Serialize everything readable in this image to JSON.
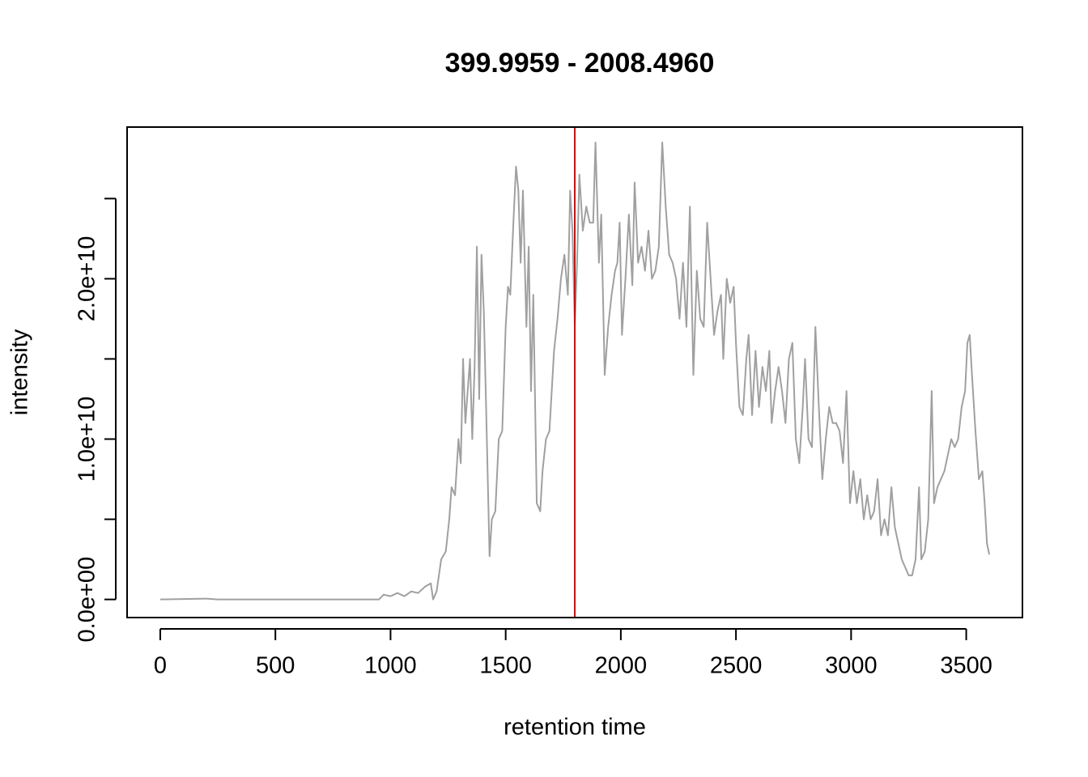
{
  "chart_data": {
    "type": "line",
    "title": "399.9959 - 2008.4960",
    "xlabel": "retention time",
    "ylabel": "intensity",
    "xlim": [
      -144,
      3744
    ],
    "ylim": [
      -1130000000.0,
      29460000000.0
    ],
    "xticks": [
      0,
      500,
      1000,
      1500,
      2000,
      2500,
      3000,
      3500
    ],
    "yticks": [
      {
        "value": 0,
        "label": "0.0e+00"
      },
      {
        "value": 5000000000.0,
        "label": null
      },
      {
        "value": 10000000000.0,
        "label": "1.0e+10"
      },
      {
        "value": 15000000000.0,
        "label": null
      },
      {
        "value": 20000000000.0,
        "label": "2.0e+10"
      },
      {
        "value": 25000000000.0,
        "label": null
      }
    ],
    "vline": {
      "x": 1800,
      "color": "#dd0000"
    },
    "series": [
      {
        "color": "#a0a0a0",
        "x": [
          0,
          200,
          250,
          500,
          950,
          970,
          1000,
          1030,
          1060,
          1090,
          1120,
          1150,
          1175,
          1185,
          1200,
          1220,
          1240,
          1255,
          1265,
          1280,
          1295,
          1305,
          1315,
          1325,
          1335,
          1345,
          1355,
          1365,
          1375,
          1385,
          1395,
          1405,
          1415,
          1430,
          1440,
          1455,
          1470,
          1485,
          1500,
          1510,
          1520,
          1535,
          1545,
          1555,
          1565,
          1575,
          1590,
          1600,
          1610,
          1620,
          1635,
          1650,
          1660,
          1675,
          1690,
          1710,
          1725,
          1740,
          1755,
          1770,
          1780,
          1790,
          1800,
          1810,
          1820,
          1835,
          1850,
          1865,
          1880,
          1890,
          1905,
          1915,
          1930,
          1945,
          1960,
          1975,
          1985,
          1995,
          2005,
          2020,
          2035,
          2050,
          2060,
          2075,
          2090,
          2105,
          2120,
          2135,
          2150,
          2165,
          2180,
          2195,
          2210,
          2225,
          2240,
          2255,
          2270,
          2285,
          2300,
          2315,
          2330,
          2345,
          2360,
          2375,
          2390,
          2405,
          2420,
          2435,
          2445,
          2460,
          2475,
          2490,
          2500,
          2515,
          2530,
          2545,
          2555,
          2570,
          2585,
          2600,
          2615,
          2630,
          2645,
          2655,
          2670,
          2685,
          2700,
          2715,
          2730,
          2745,
          2760,
          2775,
          2790,
          2800,
          2815,
          2830,
          2845,
          2860,
          2875,
          2890,
          2905,
          2920,
          2935,
          2950,
          2965,
          2980,
          2995,
          3010,
          3025,
          3040,
          3055,
          3070,
          3085,
          3100,
          3115,
          3130,
          3145,
          3160,
          3175,
          3190,
          3205,
          3220,
          3235,
          3250,
          3265,
          3280,
          3295,
          3305,
          3320,
          3335,
          3350,
          3360,
          3375,
          3390,
          3405,
          3420,
          3435,
          3450,
          3465,
          3480,
          3495,
          3505,
          3515,
          3525,
          3540,
          3555,
          3570,
          3580,
          3590,
          3600
        ],
        "values": [
          0,
          50000000.0,
          0,
          0,
          0,
          300000000.0,
          200000000.0,
          400000000.0,
          200000000.0,
          500000000.0,
          400000000.0,
          800000000.0,
          1000000000.0,
          0,
          500000000.0,
          2500000000.0,
          3000000000.0,
          5000000000.0,
          7000000000.0,
          6500000000.0,
          10000000000.0,
          8500000000.0,
          15000000000.0,
          11000000000.0,
          13000000000.0,
          15000000000.0,
          10000000000.0,
          14500000000.0,
          22000000000.0,
          12500000000.0,
          21500000000.0,
          18000000000.0,
          12000000000.0,
          2700000000.0,
          5000000000.0,
          5500000000.0,
          10000000000.0,
          10500000000.0,
          17000000000.0,
          19500000000.0,
          19000000000.0,
          24000000000.0,
          27000000000.0,
          25500000000.0,
          21000000000.0,
          25500000000.0,
          17000000000.0,
          22000000000.0,
          13000000000.0,
          19000000000.0,
          6000000000.0,
          5500000000.0,
          8000000000.0,
          10000000000.0,
          10500000000.0,
          15500000000.0,
          17500000000.0,
          20000000000.0,
          21500000000.0,
          19000000000.0,
          25500000000.0,
          23000000000.0,
          17000000000.0,
          21000000000.0,
          26500000000.0,
          23000000000.0,
          24500000000.0,
          23500000000.0,
          23500000000.0,
          28500000000.0,
          21000000000.0,
          24000000000.0,
          14000000000.0,
          17000000000.0,
          19000000000.0,
          20500000000.0,
          21000000000.0,
          23500000000.0,
          16500000000.0,
          20000000000.0,
          24000000000.0,
          19600000000.0,
          26000000000.0,
          21000000000.0,
          22000000000.0,
          20500000000.0,
          23000000000.0,
          20000000000.0,
          20500000000.0,
          22000000000.0,
          28500000000.0,
          24500000000.0,
          21500000000.0,
          21000000000.0,
          20000000000.0,
          17500000000.0,
          21000000000.0,
          17000000000.0,
          24500000000.0,
          14000000000.0,
          20500000000.0,
          17500000000.0,
          17000000000.0,
          23500000000.0,
          20000000000.0,
          16500000000.0,
          18000000000.0,
          19000000000.0,
          15000000000.0,
          20000000000.0,
          18500000000.0,
          19500000000.0,
          16000000000.0,
          12000000000.0,
          11500000000.0,
          15000000000.0,
          16500000000.0,
          11500000000.0,
          15500000000.0,
          12000000000.0,
          14500000000.0,
          13000000000.0,
          15500000000.0,
          11000000000.0,
          13000000000.0,
          14500000000.0,
          13000000000.0,
          11000000000.0,
          15000000000.0,
          16000000000.0,
          10000000000.0,
          8500000000.0,
          12000000000.0,
          15000000000.0,
          10000000000.0,
          9500000000.0,
          17000000000.0,
          12000000000.0,
          7500000000.0,
          10000000000.0,
          12000000000.0,
          11000000000.0,
          11000000000.0,
          10500000000.0,
          8500000000.0,
          13000000000.0,
          6000000000.0,
          8000000000.0,
          6000000000.0,
          7500000000.0,
          5000000000.0,
          6500000000.0,
          5000000000.0,
          5500000000.0,
          7500000000.0,
          4000000000.0,
          5000000000.0,
          4000000000.0,
          7000000000.0,
          4500000000.0,
          3500000000.0,
          2500000000.0,
          2000000000.0,
          1500000000.0,
          1500000000.0,
          2500000000.0,
          7000000000.0,
          2500000000.0,
          3000000000.0,
          5000000000.0,
          13000000000.0,
          6000000000.0,
          7000000000.0,
          7500000000.0,
          8000000000.0,
          9000000000.0,
          10000000000.0,
          9500000000.0,
          10000000000.0,
          12000000000.0,
          13000000000.0,
          16000000000.0,
          16500000000.0,
          14000000000.0,
          10500000000.0,
          7500000000.0,
          8000000000.0,
          6000000000.0,
          3500000000.0,
          2800000000.0
        ]
      }
    ]
  }
}
